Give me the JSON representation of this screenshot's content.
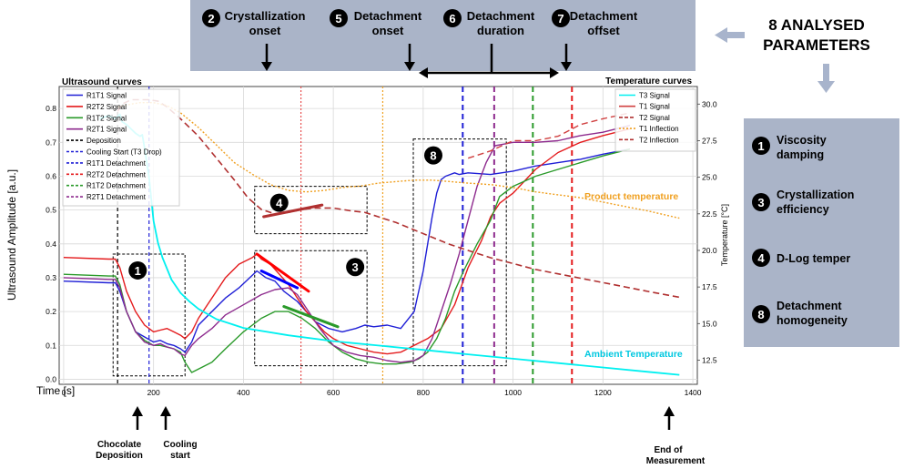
{
  "header": {
    "params": [
      {
        "num": "2",
        "label": "Crystallization onset",
        "l1": "Crystallization",
        "l2": "onset"
      },
      {
        "num": "5",
        "label": "Detachment onset",
        "l1": "Detachment",
        "l2": "onset"
      },
      {
        "num": "6",
        "label": "Detachment duration",
        "l1": "Detachment",
        "l2": "duration"
      },
      {
        "num": "7",
        "label": "Detachment offset",
        "l1": "Detachment",
        "l2": "offset"
      }
    ]
  },
  "summary": {
    "title_line1": "8 ANALYSED",
    "title_line2": "PARAMETERS",
    "items": [
      {
        "num": "1",
        "l1": "Viscosity",
        "l2": "damping"
      },
      {
        "num": "3",
        "l1": "Crystallization",
        "l2": "efficiency"
      },
      {
        "num": "4",
        "l1": "D-Log temper",
        "l2": ""
      },
      {
        "num": "8",
        "l1": "Detachment",
        "l2": "homogeneity"
      }
    ]
  },
  "bottom_labels": {
    "chocolate_deposition_l1": "Chocolate",
    "chocolate_deposition_l2": "Deposition",
    "cooling_start_l1": "Cooling",
    "cooling_start_l2": "start",
    "end_l1": "End of",
    "end_l2": "Measurement"
  },
  "colors": {
    "R1T1": "#1f1fd6",
    "R2T2": "#e41a1c",
    "R1T2": "#2a9a2a",
    "R2T1": "#8e2b8e",
    "T3": "#00f0f0",
    "T1": "#f0a020",
    "T2": "#b03030",
    "panel": "#aab4c8"
  },
  "chart_data": {
    "type": "line",
    "left_title": "Ultrasound curves",
    "right_title": "Temperature curves",
    "xlabel": "Time [s]",
    "ylabel": "Ultrasound Amplitude [a.u.]",
    "y2label": "Temperature [°C]",
    "xlim": [
      -10,
      1410
    ],
    "ylim": [
      -0.015,
      0.865
    ],
    "y2lim": [
      10.85,
      31.2
    ],
    "xticks": [
      0,
      200,
      400,
      600,
      800,
      1000,
      1200,
      1400
    ],
    "yticks": [
      0.0,
      0.1,
      0.2,
      0.3,
      0.4,
      0.5,
      0.6,
      0.7,
      0.8
    ],
    "y2ticks": [
      12.5,
      15.0,
      17.5,
      20.0,
      22.5,
      25.0,
      27.5,
      30.0
    ],
    "grid": true,
    "legend_left": [
      "R1T1 Signal",
      "R2T2 Signal",
      "R1T2 Signal",
      "R2T1 Signal",
      "Deposition",
      "Cooling Start (T3 Drop)",
      "R1T1 Detachment",
      "R2T2 Detachment",
      "R1T2 Detachment",
      "R2T1 Detachment"
    ],
    "legend_right": [
      "T3 Signal",
      "T1 Signal",
      "T2 Signal",
      "T1 Inflection",
      "T2 Inflection"
    ],
    "annotations": {
      "product_temperature": "Product temperature",
      "ambient_temperature": "Ambient Temperature"
    },
    "series": [
      {
        "name": "R1T1 Signal",
        "axis": "left",
        "x": [
          0,
          100,
          115,
          125,
          140,
          160,
          180,
          200,
          215,
          230,
          245,
          260,
          270,
          285,
          300,
          330,
          360,
          390,
          430,
          450,
          470,
          490,
          520,
          540,
          560,
          590,
          620,
          650,
          670,
          690,
          720,
          750,
          780,
          800,
          810,
          820,
          830,
          840,
          850,
          860,
          870,
          880,
          900,
          950,
          1000,
          1050,
          1100,
          1150,
          1200,
          1260
        ],
        "y": [
          0.29,
          0.285,
          0.285,
          0.26,
          0.2,
          0.14,
          0.125,
          0.11,
          0.115,
          0.105,
          0.1,
          0.09,
          0.08,
          0.11,
          0.16,
          0.2,
          0.24,
          0.27,
          0.32,
          0.3,
          0.29,
          0.26,
          0.23,
          0.2,
          0.17,
          0.15,
          0.14,
          0.15,
          0.16,
          0.155,
          0.16,
          0.15,
          0.2,
          0.32,
          0.4,
          0.48,
          0.55,
          0.59,
          0.6,
          0.605,
          0.61,
          0.605,
          0.61,
          0.605,
          0.615,
          0.63,
          0.64,
          0.65,
          0.665,
          0.68
        ]
      },
      {
        "name": "R2T2 Signal",
        "axis": "left",
        "x": [
          0,
          100,
          115,
          125,
          140,
          160,
          180,
          200,
          215,
          230,
          245,
          260,
          270,
          285,
          300,
          330,
          360,
          390,
          420,
          430,
          440,
          460,
          480,
          500,
          520,
          540,
          560,
          580,
          600,
          630,
          660,
          690,
          720,
          750,
          780,
          810,
          840,
          870,
          900,
          930,
          950,
          970,
          1000,
          1050,
          1100,
          1150,
          1200,
          1260
        ],
        "y": [
          0.36,
          0.355,
          0.355,
          0.33,
          0.26,
          0.2,
          0.16,
          0.14,
          0.145,
          0.15,
          0.14,
          0.13,
          0.12,
          0.14,
          0.18,
          0.24,
          0.3,
          0.34,
          0.36,
          0.37,
          0.355,
          0.34,
          0.31,
          0.28,
          0.24,
          0.2,
          0.17,
          0.14,
          0.12,
          0.1,
          0.09,
          0.08,
          0.075,
          0.08,
          0.1,
          0.12,
          0.15,
          0.22,
          0.33,
          0.41,
          0.48,
          0.52,
          0.55,
          0.62,
          0.67,
          0.7,
          0.72,
          0.74
        ]
      },
      {
        "name": "R1T2 Signal",
        "axis": "left",
        "x": [
          0,
          100,
          115,
          125,
          140,
          160,
          180,
          200,
          215,
          230,
          245,
          260,
          270,
          285,
          300,
          330,
          360,
          400,
          440,
          470,
          500,
          530,
          560,
          590,
          620,
          650,
          680,
          710,
          740,
          770,
          790,
          810,
          830,
          850,
          870,
          890,
          920,
          950,
          970,
          1000,
          1050,
          1100,
          1150,
          1200,
          1260
        ],
        "y": [
          0.31,
          0.305,
          0.305,
          0.28,
          0.2,
          0.14,
          0.115,
          0.1,
          0.1,
          0.095,
          0.09,
          0.08,
          0.05,
          0.02,
          0.03,
          0.05,
          0.09,
          0.14,
          0.18,
          0.2,
          0.2,
          0.18,
          0.15,
          0.11,
          0.08,
          0.06,
          0.05,
          0.045,
          0.045,
          0.05,
          0.06,
          0.08,
          0.12,
          0.18,
          0.26,
          0.32,
          0.4,
          0.47,
          0.54,
          0.57,
          0.6,
          0.62,
          0.64,
          0.66,
          0.68
        ]
      },
      {
        "name": "R2T1 Signal",
        "axis": "left",
        "x": [
          0,
          100,
          115,
          125,
          140,
          160,
          180,
          200,
          215,
          230,
          245,
          260,
          270,
          285,
          300,
          330,
          360,
          400,
          440,
          470,
          500,
          520,
          540,
          570,
          600,
          630,
          660,
          690,
          720,
          750,
          780,
          800,
          820,
          840,
          860,
          880,
          900,
          920,
          940,
          960,
          980,
          1000,
          1050,
          1100,
          1150,
          1200,
          1260
        ],
        "y": [
          0.3,
          0.295,
          0.295,
          0.27,
          0.2,
          0.14,
          0.11,
          0.1,
          0.105,
          0.095,
          0.09,
          0.075,
          0.07,
          0.1,
          0.12,
          0.15,
          0.19,
          0.22,
          0.25,
          0.265,
          0.27,
          0.25,
          0.21,
          0.15,
          0.1,
          0.08,
          0.07,
          0.065,
          0.055,
          0.05,
          0.055,
          0.07,
          0.12,
          0.2,
          0.28,
          0.37,
          0.47,
          0.57,
          0.64,
          0.69,
          0.695,
          0.7,
          0.7,
          0.705,
          0.72,
          0.73,
          0.75
        ]
      },
      {
        "name": "T3 Signal",
        "axis": "right",
        "x": [
          80,
          100,
          115,
          125,
          130,
          140,
          150,
          160,
          170,
          175,
          180,
          190,
          200,
          210,
          220,
          240,
          260,
          280,
          300,
          340,
          400,
          500,
          600,
          700,
          800,
          900,
          1000,
          1100,
          1200,
          1300,
          1370
        ],
        "y": [
          29.0,
          29.2,
          29.0,
          29.3,
          28.8,
          28.6,
          28.3,
          28.0,
          27.8,
          27.9,
          27.0,
          25.0,
          22.0,
          20.5,
          19.5,
          18.0,
          17.1,
          16.5,
          16.0,
          15.3,
          14.7,
          14.2,
          13.8,
          13.5,
          13.2,
          12.9,
          12.6,
          12.3,
          12.0,
          11.7,
          11.5
        ]
      },
      {
        "name": "T1 Signal",
        "axis": "right",
        "x": [
          900,
          950,
          1000,
          1050,
          1100,
          1150,
          1200,
          1260
        ],
        "y": [
          26.3,
          26.8,
          27.5,
          27.5,
          27.8,
          28.6,
          29.0,
          29.4
        ]
      },
      {
        "name": "T2 Signal",
        "axis": "right",
        "x": [
          120,
          130,
          150,
          170,
          190,
          210,
          230,
          260,
          300,
          340,
          380,
          410,
          440,
          470,
          500,
          530,
          560,
          600,
          640,
          670,
          700,
          740,
          780,
          820,
          860,
          900,
          950,
          1000,
          1050,
          1100,
          1150,
          1200,
          1250,
          1300,
          1370
        ],
        "y": [
          29.5,
          30.0,
          30.3,
          30.3,
          30.3,
          30.2,
          29.8,
          29.0,
          27.8,
          26.3,
          24.8,
          23.6,
          22.8,
          22.5,
          22.6,
          22.8,
          22.9,
          22.9,
          22.7,
          22.6,
          22.3,
          21.9,
          21.4,
          20.9,
          20.4,
          20.0,
          19.5,
          19.1,
          18.7,
          18.4,
          18.1,
          17.8,
          17.5,
          17.2,
          16.8
        ]
      },
      {
        "name": "T1 Inflection",
        "axis": "right",
        "x": [
          120,
          150,
          170,
          200,
          230,
          260,
          300,
          340,
          380,
          420,
          460,
          500,
          540,
          580,
          620,
          660,
          700,
          740,
          780,
          820,
          860,
          900,
          950,
          1000,
          1050,
          1100,
          1150,
          1200,
          1250,
          1300,
          1370
        ],
        "y": [
          29.8,
          30.0,
          30.1,
          30.1,
          29.9,
          29.4,
          28.4,
          27.2,
          26.0,
          25.2,
          24.5,
          24.1,
          24.0,
          24.1,
          24.3,
          24.4,
          24.6,
          24.7,
          24.8,
          24.8,
          24.7,
          24.6,
          24.5,
          24.3,
          24.0,
          23.8,
          23.6,
          23.3,
          23.0,
          22.7,
          22.2
        ]
      }
    ],
    "fit_segments": [
      {
        "name": "R2T2 fit",
        "axis": "left",
        "color": "#ff0000",
        "x": [
          430,
          545
        ],
        "y": [
          0.37,
          0.26
        ]
      },
      {
        "name": "R1T1 fit",
        "axis": "left",
        "color": "#0000ff",
        "x": [
          440,
          520
        ],
        "y": [
          0.32,
          0.27
        ]
      },
      {
        "name": "R1T2 fit",
        "axis": "left",
        "color": "#2a9a2a",
        "x": [
          490,
          610
        ],
        "y": [
          0.215,
          0.155
        ]
      },
      {
        "name": "T2 fit",
        "axis": "right",
        "color": "#b03030",
        "x": [
          445,
          575
        ],
        "y": [
          22.3,
          23.1
        ]
      }
    ],
    "vlines": [
      {
        "name": "Deposition",
        "x": 120,
        "color": "#000000",
        "dash": "4 3"
      },
      {
        "name": "Cooling Start (T3 Drop)",
        "x": 190,
        "color": "#1f1fd6",
        "dash": "4 3"
      },
      {
        "name": "Crystallization onset",
        "x": 528,
        "color": "#e85050",
        "dash": "2 2"
      },
      {
        "name": "Detachment onset",
        "x": 710,
        "color": "#f0a020",
        "dash": "2 2"
      },
      {
        "name": "R1T1 Detachment",
        "x": 888,
        "color": "#1f1fd6",
        "dash": "6 4"
      },
      {
        "name": "R2T1 Detachment",
        "x": 958,
        "color": "#8e2b8e",
        "dash": "6 4"
      },
      {
        "name": "R1T2 Detachment",
        "x": 1044,
        "color": "#2a9a2a",
        "dash": "6 4"
      },
      {
        "name": "R2T2 Detachment",
        "x": 1131,
        "color": "#e41a1c",
        "dash": "6 4"
      }
    ],
    "regions": [
      {
        "num": "1",
        "x": [
          110,
          270
        ],
        "y": [
          0.01,
          0.37
        ]
      },
      {
        "num": "3",
        "x": [
          425,
          675
        ],
        "y": [
          0.04,
          0.38
        ]
      },
      {
        "num": "4",
        "x": [
          425,
          675
        ],
        "y": [
          0.43,
          0.57
        ]
      },
      {
        "num": "8",
        "x": [
          778,
          985
        ],
        "y": [
          0.04,
          0.71
        ]
      }
    ]
  }
}
